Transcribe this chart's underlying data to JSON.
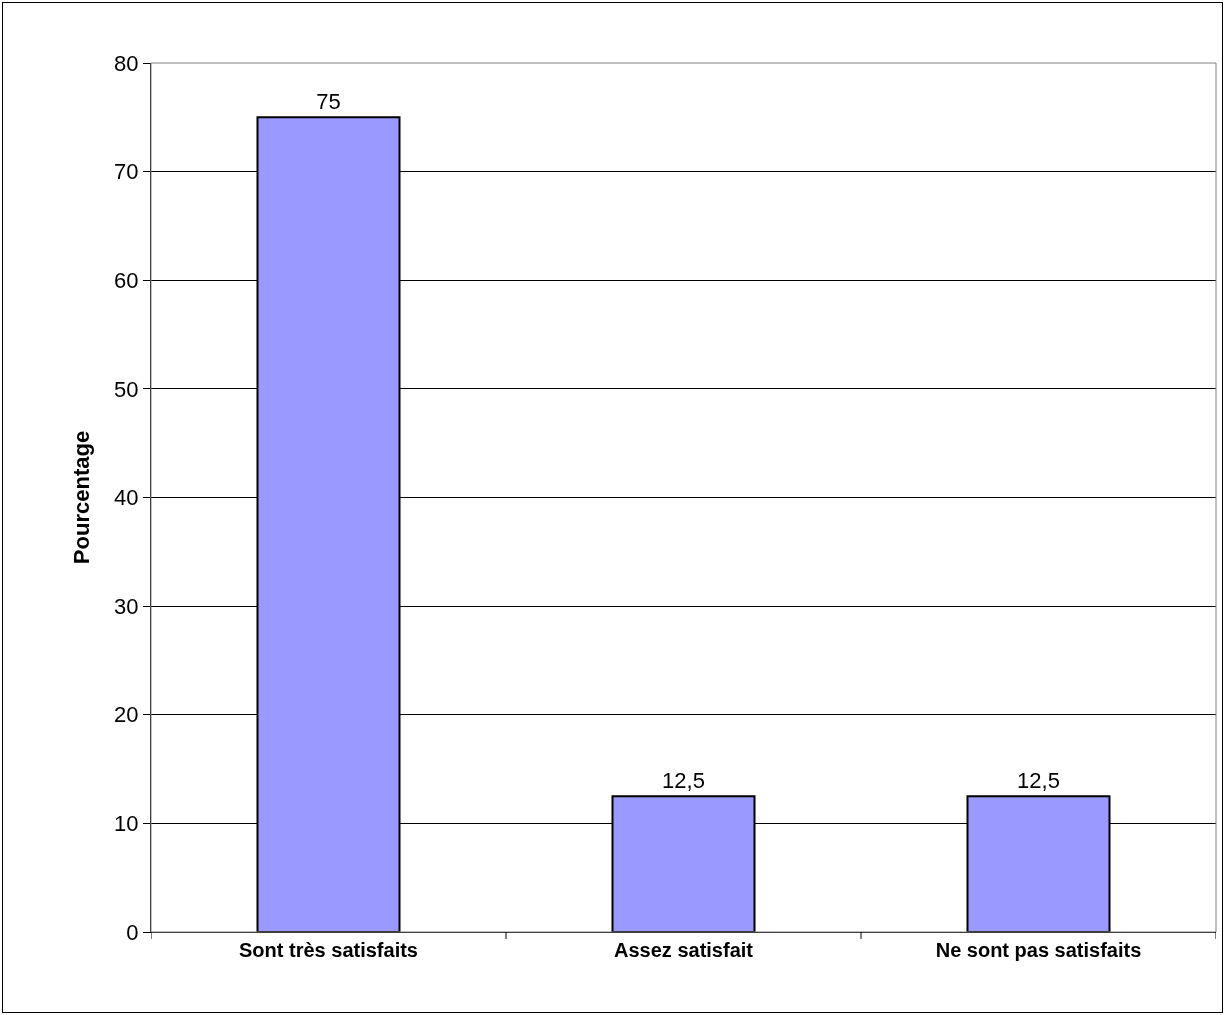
{
  "chart_data": {
    "type": "bar",
    "ylabel": "Pourcentage",
    "categories": [
      "Sont très satisfaits",
      "Assez satisfait",
      "Ne sont pas satisfaits"
    ],
    "values": [
      75,
      12.5,
      12.5
    ],
    "value_labels": [
      "75",
      "12,5",
      "12,5"
    ],
    "color": "#9999ff",
    "ylim": [
      0,
      80
    ],
    "yticks": [
      0,
      10,
      20,
      30,
      40,
      50,
      60,
      70,
      80
    ],
    "grid": "y",
    "legend": false
  }
}
